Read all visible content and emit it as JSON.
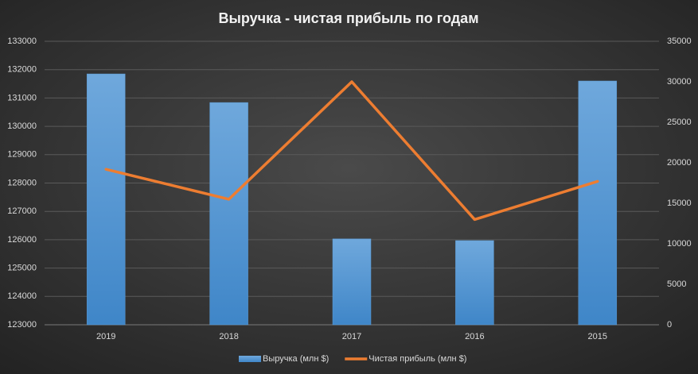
{
  "chart_data": {
    "type": "bar",
    "title": "Выручка  - чистая  прибыль  по годам",
    "categories": [
      "2019",
      "2018",
      "2017",
      "2016",
      "2015"
    ],
    "series": [
      {
        "name": "Выручка (млн $)",
        "type": "bar",
        "color": "#5b9bd5",
        "values": [
          131850,
          130840,
          126030,
          125970,
          131600
        ]
      },
      {
        "name": "Чистая прибыль (млн $)",
        "type": "line",
        "axis": "y2",
        "color": "#ed7d31",
        "values": [
          19200,
          15500,
          30000,
          13000,
          17700
        ]
      }
    ],
    "ylim": [
      123000,
      133000
    ],
    "yticks": [
      123000,
      124000,
      125000,
      126000,
      127000,
      128000,
      129000,
      130000,
      131000,
      132000,
      133000
    ],
    "y2lim": [
      0,
      35000
    ],
    "y2ticks": [
      0,
      5000,
      10000,
      15000,
      20000,
      25000,
      30000,
      35000
    ],
    "grid": true,
    "legend": "bottom"
  }
}
